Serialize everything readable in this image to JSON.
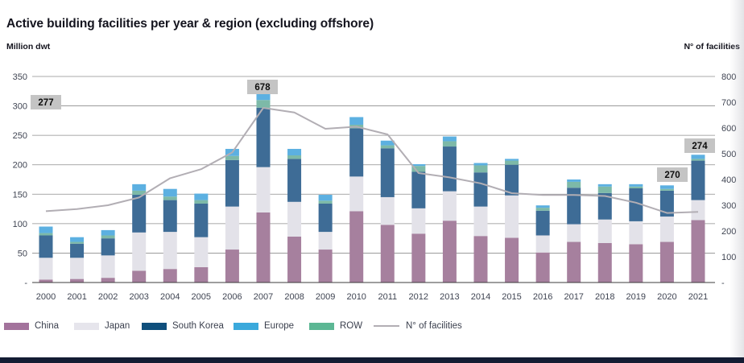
{
  "title": "Active building facilities per year & region (excluding offshore)",
  "axes": {
    "left_label": "Million dwt",
    "right_label": "N° of facilities",
    "left_ticks": [
      "350",
      "300",
      "250",
      "200",
      "150",
      "100",
      "50",
      "-"
    ],
    "right_ticks": [
      "800",
      "700",
      "600",
      "500",
      "400",
      "300",
      "200",
      "100",
      "-"
    ]
  },
  "chart_data": {
    "type": "bar",
    "subtype": "stacked-bars-with-overlay-line",
    "title": "Active building facilities per year & region (excluding offshore)",
    "categories": [
      "2000",
      "2001",
      "2002",
      "2003",
      "2004",
      "2005",
      "2006",
      "2007",
      "2008",
      "2009",
      "2010",
      "2011",
      "2012",
      "2013",
      "2014",
      "2015",
      "2016",
      "2017",
      "2018",
      "2019",
      "2020",
      "2021"
    ],
    "stack_order": [
      "China",
      "Japan",
      "South Korea",
      "ROW",
      "Europe"
    ],
    "series": [
      {
        "name": "China",
        "values": [
          5,
          6,
          8,
          20,
          23,
          26,
          56,
          119,
          78,
          56,
          121,
          98,
          83,
          105,
          79,
          76,
          51,
          69,
          67,
          65,
          69,
          106
        ]
      },
      {
        "name": "Japan",
        "values": [
          37,
          36,
          38,
          65,
          63,
          51,
          73,
          77,
          59,
          30,
          59,
          47,
          43,
          50,
          50,
          72,
          29,
          30,
          40,
          39,
          43,
          34
        ]
      },
      {
        "name": "South Korea",
        "values": [
          38,
          24,
          29,
          64,
          54,
          57,
          79,
          101,
          73,
          48,
          82,
          83,
          62,
          76,
          58,
          52,
          42,
          62,
          45,
          56,
          44,
          67
        ]
      },
      {
        "name": "Europe",
        "values": [
          11,
          8,
          9,
          11,
          13,
          11,
          12,
          13,
          11,
          10,
          13,
          8,
          3,
          8,
          4,
          3,
          4,
          4,
          4,
          4,
          6,
          7
        ]
      },
      {
        "name": "ROW",
        "values": [
          4,
          3,
          5,
          7,
          6,
          6,
          7,
          13,
          6,
          5,
          6,
          5,
          10,
          9,
          12,
          7,
          5,
          10,
          11,
          3,
          3,
          3
        ]
      }
    ],
    "line_series": {
      "name": "N° of facilities",
      "values": [
        277,
        285,
        300,
        330,
        405,
        440,
        505,
        678,
        660,
        597,
        605,
        575,
        425,
        408,
        385,
        347,
        340,
        340,
        336,
        310,
        270,
        274
      ]
    },
    "left_axis": {
      "label": "Million dwt",
      "min": 0,
      "max": 350,
      "step": 50
    },
    "right_axis": {
      "label": "N° of facilities",
      "min": 0,
      "max": 800,
      "step": 100
    },
    "annotations": [
      {
        "category": "2000",
        "text": "277"
      },
      {
        "category": "2007",
        "text": "678"
      },
      {
        "category": "2020",
        "text": "270"
      },
      {
        "category": "2021",
        "text": "274"
      }
    ],
    "grid": true,
    "legend_position": "bottom"
  },
  "legend": {
    "items": [
      {
        "label": "China",
        "type": "swatch",
        "color": "#a3739c"
      },
      {
        "label": "Japan",
        "type": "swatch",
        "color": "#e6e5ec"
      },
      {
        "label": "South Korea",
        "type": "swatch",
        "color": "#0f4f7c"
      },
      {
        "label": "Europe",
        "type": "swatch",
        "color": "#3ba9dc"
      },
      {
        "label": "ROW",
        "type": "swatch",
        "color": "#5cb794"
      },
      {
        "label": "N° of facilities",
        "type": "line",
        "color": "#b2aeb4"
      }
    ]
  },
  "colors": {
    "bar": {
      "China": "#a6809e",
      "Japan": "#e3e2e9",
      "South Korea": "#3e6c96",
      "ROW": "#7db9a8",
      "Europe": "#5cb0e1"
    },
    "line": "#b2aeb4",
    "grid": "#8d8d8d",
    "baseline": "#3c3c3c",
    "axis_text": "#3f4452",
    "annotation_bg": "#c4c4c4",
    "annotation_text": "#0d0d0d",
    "footer_bar": "#131c33"
  }
}
